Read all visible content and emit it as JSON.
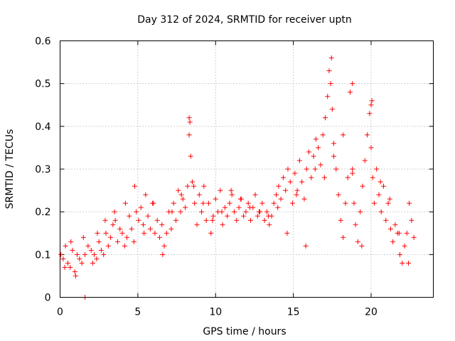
{
  "chart_data": {
    "type": "scatter",
    "title": "Day 312 of 2024, SRMTID for receiver uptn",
    "xlabel": "GPS time / hours",
    "ylabel": "SRMTID / TECUs",
    "xlim": [
      0,
      24
    ],
    "ylim": [
      0,
      0.6
    ],
    "xticks": [
      0,
      5,
      10,
      15,
      20
    ],
    "xtick_labels": [
      "0",
      "5",
      "10",
      "15",
      "20"
    ],
    "yticks": [
      0,
      0.1,
      0.2,
      0.3,
      0.4,
      0.5,
      0.6
    ],
    "ytick_labels": [
      "0",
      "0.1",
      "0.2",
      "0.3",
      "0.4",
      "0.5",
      "0.6"
    ],
    "grid": true,
    "legend": "none",
    "marker": "plus",
    "color": "#ff0000",
    "series": [
      {
        "name": "SRMTID",
        "x": [
          0.05,
          0.2,
          0.35,
          0.5,
          0.65,
          0.8,
          0.95,
          1.1,
          1.25,
          1.4,
          1.6,
          1.8,
          2.0,
          2.1,
          2.2,
          2.35,
          2.5,
          2.65,
          2.8,
          2.95,
          3.1,
          3.25,
          3.4,
          3.55,
          3.7,
          3.85,
          4.0,
          4.15,
          4.3,
          4.45,
          4.6,
          4.75,
          4.9,
          5.05,
          5.2,
          5.35,
          5.5,
          5.65,
          5.8,
          5.95,
          6.1,
          6.25,
          6.4,
          6.55,
          6.7,
          6.85,
          7.0,
          7.15,
          7.3,
          7.45,
          7.6,
          7.75,
          7.9,
          8.05,
          8.2,
          8.3,
          8.35,
          8.4,
          8.5,
          8.65,
          8.8,
          8.95,
          9.1,
          9.25,
          9.4,
          9.55,
          9.7,
          9.85,
          10.0,
          10.15,
          10.3,
          10.45,
          10.6,
          10.75,
          10.9,
          11.05,
          11.2,
          11.35,
          11.5,
          11.65,
          11.8,
          11.95,
          12.1,
          12.25,
          12.4,
          12.55,
          12.7,
          12.85,
          13.0,
          13.15,
          13.3,
          13.45,
          13.6,
          13.75,
          13.9,
          14.05,
          14.2,
          14.35,
          14.5,
          14.65,
          14.8,
          14.95,
          15.1,
          15.25,
          15.4,
          15.55,
          15.7,
          15.85,
          16.0,
          16.15,
          16.3,
          16.45,
          16.6,
          16.75,
          16.9,
          17.05,
          17.2,
          17.3,
          17.4,
          17.5,
          17.6,
          17.75,
          17.9,
          18.05,
          18.2,
          18.35,
          18.5,
          18.65,
          18.8,
          18.9,
          19.0,
          19.15,
          19.3,
          19.45,
          19.6,
          19.75,
          19.9,
          20.0,
          20.1,
          20.2,
          20.35,
          20.5,
          20.65,
          20.8,
          20.95,
          21.1,
          21.25,
          21.4,
          21.55,
          21.7,
          21.85,
          22.0,
          22.15,
          22.3,
          22.45,
          22.6,
          22.75,
          0.3,
          0.7,
          1.0,
          1.5,
          2.4,
          2.9,
          3.5,
          4.2,
          4.8,
          5.4,
          6.0,
          6.6,
          7.2,
          7.8,
          8.6,
          9.2,
          9.8,
          10.4,
          11.0,
          11.6,
          12.2,
          12.8,
          13.4,
          14.0,
          14.6,
          15.2,
          15.8,
          16.4,
          17.0,
          17.6,
          18.2,
          18.8,
          19.4,
          20.0,
          20.6,
          21.2,
          21.8,
          22.4,
          1.6,
          8.3,
          17.45,
          18.8,
          20.05
        ],
        "y": [
          0.1,
          0.09,
          0.12,
          0.08,
          0.07,
          0.11,
          0.06,
          0.1,
          0.09,
          0.08,
          0.1,
          0.12,
          0.11,
          0.08,
          0.1,
          0.09,
          0.13,
          0.11,
          0.1,
          0.15,
          0.12,
          0.14,
          0.17,
          0.18,
          0.13,
          0.16,
          0.15,
          0.12,
          0.14,
          0.19,
          0.16,
          0.13,
          0.2,
          0.18,
          0.21,
          0.17,
          0.24,
          0.19,
          0.16,
          0.22,
          0.15,
          0.18,
          0.14,
          0.17,
          0.12,
          0.15,
          0.2,
          0.16,
          0.22,
          0.18,
          0.25,
          0.2,
          0.23,
          0.21,
          0.26,
          0.38,
          0.41,
          0.33,
          0.27,
          0.22,
          0.17,
          0.24,
          0.2,
          0.26,
          0.18,
          0.22,
          0.15,
          0.19,
          0.23,
          0.2,
          0.25,
          0.17,
          0.21,
          0.19,
          0.22,
          0.24,
          0.2,
          0.18,
          0.21,
          0.23,
          0.19,
          0.2,
          0.22,
          0.18,
          0.21,
          0.24,
          0.19,
          0.2,
          0.22,
          0.18,
          0.2,
          0.17,
          0.19,
          0.22,
          0.24,
          0.26,
          0.23,
          0.28,
          0.25,
          0.3,
          0.27,
          0.22,
          0.29,
          0.25,
          0.32,
          0.27,
          0.23,
          0.3,
          0.34,
          0.28,
          0.33,
          0.37,
          0.35,
          0.31,
          0.38,
          0.42,
          0.47,
          0.53,
          0.5,
          0.44,
          0.36,
          0.3,
          0.24,
          0.18,
          0.14,
          0.22,
          0.28,
          0.48,
          0.3,
          0.22,
          0.17,
          0.13,
          0.2,
          0.26,
          0.32,
          0.38,
          0.43,
          0.35,
          0.28,
          0.22,
          0.3,
          0.24,
          0.2,
          0.26,
          0.18,
          0.22,
          0.16,
          0.13,
          0.17,
          0.15,
          0.1,
          0.08,
          0.12,
          0.15,
          0.22,
          0.18,
          0.14,
          0.07,
          0.13,
          0.05,
          0.14,
          0.15,
          0.18,
          0.2,
          0.22,
          0.26,
          0.15,
          0.22,
          0.1,
          0.2,
          0.24,
          0.26,
          0.22,
          0.18,
          0.2,
          0.25,
          0.23,
          0.21,
          0.2,
          0.19,
          0.21,
          0.15,
          0.24,
          0.12,
          0.3,
          0.28,
          0.33,
          0.38,
          0.29,
          0.12,
          0.45,
          0.27,
          0.23,
          0.15,
          0.08,
          0.0,
          0.42,
          0.56,
          0.5,
          0.46
        ]
      }
    ]
  }
}
